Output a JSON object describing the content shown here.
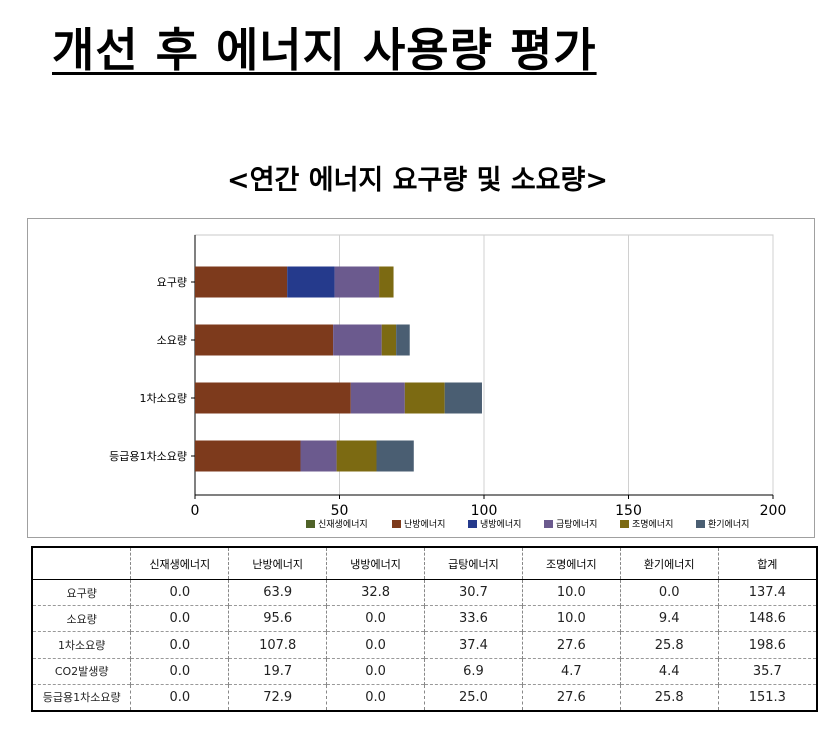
{
  "page": {
    "title": "개선 후 에너지 사용량 평가",
    "subtitle": "<연간 에너지 요구량 및 소요량>"
  },
  "chart_data": {
    "type": "bar",
    "orientation": "horizontal",
    "stacked": true,
    "categories": [
      "요구량",
      "소요량",
      "1차소요량",
      "등급용1차소요량"
    ],
    "series": [
      {
        "name": "신재생에너지",
        "color": "#4f6228",
        "values": [
          0.0,
          0.0,
          0.0,
          0.0
        ]
      },
      {
        "name": "난방에너지",
        "color": "#7d3a1c",
        "values": [
          31.9,
          47.8,
          53.9,
          36.5
        ]
      },
      {
        "name": "냉방에너지",
        "color": "#253a8c",
        "values": [
          16.4,
          0.0,
          0.0,
          0.0
        ]
      },
      {
        "name": "급탕에너지",
        "color": "#6b5a8e",
        "values": [
          15.4,
          16.8,
          18.7,
          12.5
        ]
      },
      {
        "name": "조명에너지",
        "color": "#7c6a12",
        "values": [
          5.0,
          5.0,
          13.8,
          13.8
        ]
      },
      {
        "name": "환기에너지",
        "color": "#4a5e72",
        "values": [
          0.0,
          4.7,
          12.9,
          12.9
        ]
      }
    ],
    "xlim": [
      0,
      200
    ],
    "xticks": [
      0,
      50,
      100,
      150,
      200
    ],
    "grid": true,
    "legend_position": "bottom"
  },
  "table": {
    "columns": [
      "신재생에너지",
      "난방에너지",
      "냉방에너지",
      "급탕에너지",
      "조명에너지",
      "환기에너지",
      "합계"
    ],
    "rows": [
      {
        "label": "요구량",
        "values": [
          "0.0",
          "63.9",
          "32.8",
          "30.7",
          "10.0",
          "0.0",
          "137.4"
        ]
      },
      {
        "label": "소요량",
        "values": [
          "0.0",
          "95.6",
          "0.0",
          "33.6",
          "10.0",
          "9.4",
          "148.6"
        ]
      },
      {
        "label": "1차소요량",
        "values": [
          "0.0",
          "107.8",
          "0.0",
          "37.4",
          "27.6",
          "25.8",
          "198.6"
        ]
      },
      {
        "label": "CO2발생량",
        "values": [
          "0.0",
          "19.7",
          "0.0",
          "6.9",
          "4.7",
          "4.4",
          "35.7"
        ]
      },
      {
        "label": "등급용1차소요량",
        "values": [
          "0.0",
          "72.9",
          "0.0",
          "25.0",
          "27.6",
          "25.8",
          "151.3"
        ]
      }
    ]
  }
}
